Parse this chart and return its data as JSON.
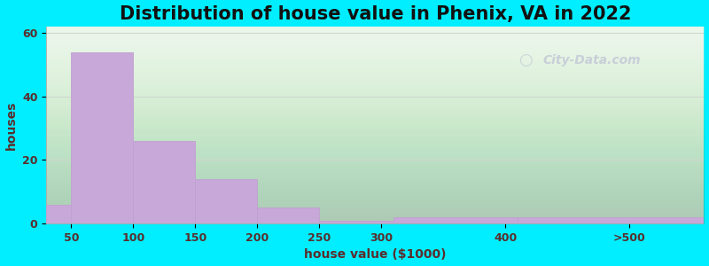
{
  "title": "Distribution of house value in Phenix, VA in 2022",
  "xlabel": "house value ($1000)",
  "ylabel": "houses",
  "bar_values": [
    6,
    54,
    26,
    14,
    5,
    1,
    2,
    2
  ],
  "bar_color": "#c8a8d8",
  "bar_edgecolor": "#c0a0d0",
  "ylim": [
    0,
    62
  ],
  "yticks": [
    0,
    20,
    40,
    60
  ],
  "background_color": "#00eeff",
  "plot_bg_color": "#e8f5e8",
  "title_fontsize": 15,
  "axis_label_fontsize": 10,
  "tick_fontsize": 9,
  "title_color": "#111111",
  "label_color": "#5a2d2d",
  "watermark_text": "City-Data.com",
  "watermark_color": "#c8cfd8",
  "tick_positions": [
    50,
    100,
    150,
    200,
    250,
    300,
    400,
    500
  ],
  "tick_labels": [
    "50",
    "100",
    "150",
    "200",
    "250",
    "300",
    "400",
    ">500"
  ],
  "xlim": [
    30,
    560
  ],
  "bar_left_edges": [
    30,
    50,
    100,
    150,
    200,
    250,
    310,
    410
  ],
  "bar_right_edges": [
    50,
    100,
    150,
    200,
    250,
    310,
    410,
    560
  ]
}
